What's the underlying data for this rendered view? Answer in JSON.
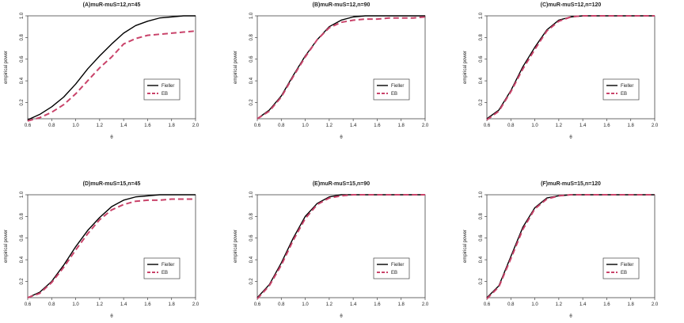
{
  "colors": {
    "fieller": "#000000",
    "eb": "#c9436a",
    "axis": "#444444"
  },
  "chart_data": [
    {
      "type": "line",
      "title": "(A)muR-muS=12,n=45",
      "xlabel": "θ",
      "ylabel": "empirical power",
      "xlim": [
        0.6,
        2.0
      ],
      "ylim": [
        0.05,
        1.0
      ],
      "xticks": [
        "0.6",
        "0.8",
        "1.0",
        "1.2",
        "1.4",
        "1.6",
        "1.8",
        "2.0"
      ],
      "yticks": [
        "0.2",
        "0.4",
        "0.6",
        "0.8",
        "1.0"
      ],
      "legend": {
        "position": "right",
        "entries": [
          "Fieller",
          "EB"
        ]
      },
      "x": [
        0.6,
        0.7,
        0.8,
        0.9,
        1.0,
        1.1,
        1.2,
        1.3,
        1.4,
        1.5,
        1.6,
        1.7,
        1.8,
        1.9,
        2.0
      ],
      "series": [
        {
          "name": "Fieller",
          "values": [
            0.04,
            0.09,
            0.16,
            0.25,
            0.37,
            0.51,
            0.63,
            0.74,
            0.84,
            0.91,
            0.95,
            0.98,
            0.99,
            1.0,
            1.0
          ]
        },
        {
          "name": "EB",
          "values": [
            0.03,
            0.06,
            0.11,
            0.18,
            0.28,
            0.4,
            0.52,
            0.62,
            0.74,
            0.79,
            0.82,
            0.83,
            0.84,
            0.85,
            0.86
          ]
        }
      ]
    },
    {
      "type": "line",
      "title": "(B)muR-muS=12,n=90",
      "xlabel": "θ",
      "ylabel": "empirical power",
      "xlim": [
        0.6,
        2.0
      ],
      "ylim": [
        0.05,
        1.0
      ],
      "xticks": [
        "0.6",
        "0.8",
        "1.0",
        "1.2",
        "1.4",
        "1.6",
        "1.8",
        "2.0"
      ],
      "yticks": [
        "0.2",
        "0.4",
        "0.6",
        "0.8",
        "1.0"
      ],
      "legend": {
        "position": "right",
        "entries": [
          "Fieller",
          "EB"
        ]
      },
      "x": [
        0.6,
        0.7,
        0.8,
        0.9,
        1.0,
        1.1,
        1.2,
        1.3,
        1.4,
        1.5,
        1.6,
        1.7,
        1.8,
        1.9,
        2.0
      ],
      "series": [
        {
          "name": "Fieller",
          "values": [
            0.05,
            0.13,
            0.26,
            0.45,
            0.63,
            0.78,
            0.9,
            0.96,
            0.99,
            1.0,
            1.0,
            1.0,
            1.0,
            1.0,
            1.0
          ]
        },
        {
          "name": "EB",
          "values": [
            0.05,
            0.12,
            0.25,
            0.44,
            0.62,
            0.78,
            0.89,
            0.94,
            0.96,
            0.97,
            0.97,
            0.98,
            0.98,
            0.98,
            0.99
          ]
        }
      ]
    },
    {
      "type": "line",
      "title": "(C)muR-muS=12,n=120",
      "xlabel": "θ",
      "ylabel": "empirical power",
      "xlim": [
        0.6,
        2.0
      ],
      "ylim": [
        0.05,
        1.0
      ],
      "xticks": [
        "0.6",
        "0.8",
        "1.0",
        "1.2",
        "1.4",
        "1.6",
        "1.8",
        "2.0"
      ],
      "yticks": [
        "0.2",
        "0.4",
        "0.6",
        "0.8",
        "1.0"
      ],
      "legend": {
        "position": "right",
        "entries": [
          "Fieller",
          "EB"
        ]
      },
      "x": [
        0.6,
        0.7,
        0.8,
        0.9,
        1.0,
        1.1,
        1.2,
        1.3,
        1.4,
        1.5,
        1.6,
        1.7,
        1.8,
        1.9,
        2.0
      ],
      "series": [
        {
          "name": "Fieller",
          "values": [
            0.05,
            0.13,
            0.31,
            0.53,
            0.71,
            0.87,
            0.96,
            0.99,
            1.0,
            1.0,
            1.0,
            1.0,
            1.0,
            1.0,
            1.0
          ]
        },
        {
          "name": "EB",
          "values": [
            0.04,
            0.12,
            0.3,
            0.51,
            0.69,
            0.86,
            0.95,
            0.99,
            1.0,
            1.0,
            1.0,
            1.0,
            1.0,
            1.0,
            1.0
          ]
        }
      ]
    },
    {
      "type": "line",
      "title": "(D)muR-muS=15,n=45",
      "xlabel": "θ",
      "ylabel": "empirical power",
      "xlim": [
        0.6,
        2.0
      ],
      "ylim": [
        0.05,
        1.0
      ],
      "xticks": [
        "0.6",
        "0.8",
        "1.0",
        "1.2",
        "1.4",
        "1.6",
        "1.8",
        "2.0"
      ],
      "yticks": [
        "0.2",
        "0.4",
        "0.6",
        "0.8",
        "1.0"
      ],
      "legend": {
        "position": "right",
        "entries": [
          "Fieller",
          "EB"
        ]
      },
      "x": [
        0.6,
        0.7,
        0.8,
        0.9,
        1.0,
        1.1,
        1.2,
        1.3,
        1.4,
        1.5,
        1.6,
        1.7,
        1.8,
        1.9,
        2.0
      ],
      "series": [
        {
          "name": "Fieller",
          "values": [
            0.05,
            0.1,
            0.2,
            0.35,
            0.52,
            0.67,
            0.79,
            0.89,
            0.95,
            0.98,
            0.99,
            1.0,
            1.0,
            1.0,
            1.0
          ]
        },
        {
          "name": "EB",
          "values": [
            0.05,
            0.09,
            0.19,
            0.33,
            0.49,
            0.64,
            0.77,
            0.86,
            0.91,
            0.94,
            0.95,
            0.95,
            0.96,
            0.96,
            0.96
          ]
        }
      ]
    },
    {
      "type": "line",
      "title": "(E)muR-muS=15,n=90",
      "xlabel": "θ",
      "ylabel": "empirical power",
      "xlim": [
        0.6,
        2.0
      ],
      "ylim": [
        0.05,
        1.0
      ],
      "xticks": [
        "0.6",
        "0.8",
        "1.0",
        "1.2",
        "1.4",
        "1.6",
        "1.8",
        "2.0"
      ],
      "yticks": [
        "0.2",
        "0.4",
        "0.6",
        "0.8",
        "1.0"
      ],
      "legend": {
        "position": "right",
        "entries": [
          "Fieller",
          "EB"
        ]
      },
      "x": [
        0.6,
        0.7,
        0.8,
        0.9,
        1.0,
        1.1,
        1.2,
        1.3,
        1.4,
        1.5,
        1.6,
        1.7,
        1.8,
        1.9,
        2.0
      ],
      "series": [
        {
          "name": "Fieller",
          "values": [
            0.05,
            0.17,
            0.37,
            0.6,
            0.8,
            0.92,
            0.98,
            1.0,
            1.0,
            1.0,
            1.0,
            1.0,
            1.0,
            1.0,
            1.0
          ]
        },
        {
          "name": "EB",
          "values": [
            0.04,
            0.16,
            0.35,
            0.58,
            0.78,
            0.91,
            0.97,
            0.99,
            1.0,
            1.0,
            1.0,
            1.0,
            1.0,
            1.0,
            1.0
          ]
        }
      ]
    },
    {
      "type": "line",
      "title": "(F)muR-muS=15,n=120",
      "xlabel": "θ",
      "ylabel": "empirical power",
      "xlim": [
        0.6,
        2.0
      ],
      "ylim": [
        0.05,
        1.0
      ],
      "xticks": [
        "0.6",
        "0.8",
        "1.0",
        "1.2",
        "1.4",
        "1.6",
        "1.8",
        "2.0"
      ],
      "yticks": [
        "0.2",
        "0.4",
        "0.6",
        "0.8",
        "1.0"
      ],
      "legend": {
        "position": "right",
        "entries": [
          "Fieller",
          "EB"
        ]
      },
      "x": [
        0.6,
        0.7,
        0.8,
        0.9,
        1.0,
        1.1,
        1.2,
        1.3,
        1.4,
        1.5,
        1.6,
        1.7,
        1.8,
        1.9,
        2.0
      ],
      "series": [
        {
          "name": "Fieller",
          "values": [
            0.05,
            0.16,
            0.43,
            0.7,
            0.88,
            0.97,
            0.99,
            1.0,
            1.0,
            1.0,
            1.0,
            1.0,
            1.0,
            1.0,
            1.0
          ]
        },
        {
          "name": "EB",
          "values": [
            0.04,
            0.15,
            0.41,
            0.68,
            0.87,
            0.96,
            0.99,
            1.0,
            1.0,
            1.0,
            1.0,
            1.0,
            1.0,
            1.0,
            1.0
          ]
        }
      ]
    }
  ]
}
